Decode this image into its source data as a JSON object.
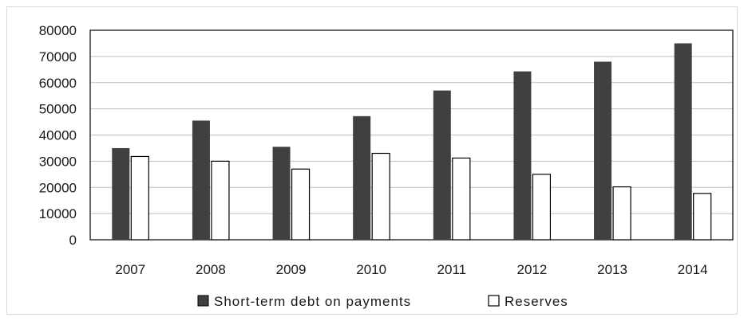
{
  "chart_data": {
    "type": "bar",
    "categories": [
      "2007",
      "2008",
      "2009",
      "2010",
      "2011",
      "2012",
      "2013",
      "2014"
    ],
    "series": [
      {
        "name": "Short-term debt on payments",
        "values": [
          35000,
          45500,
          35500,
          47200,
          57000,
          64300,
          68000,
          75000
        ],
        "color": "#404040"
      },
      {
        "name": "Reserves",
        "values": [
          31800,
          30000,
          27000,
          33000,
          31200,
          25000,
          20200,
          17700
        ],
        "color": "#ffffff"
      }
    ],
    "y_ticks": [
      "0",
      "10000",
      "20000",
      "30000",
      "40000",
      "50000",
      "60000",
      "70000",
      "80000"
    ],
    "ylim": [
      0,
      80000
    ],
    "grid": true,
    "legend_position": "bottom"
  }
}
